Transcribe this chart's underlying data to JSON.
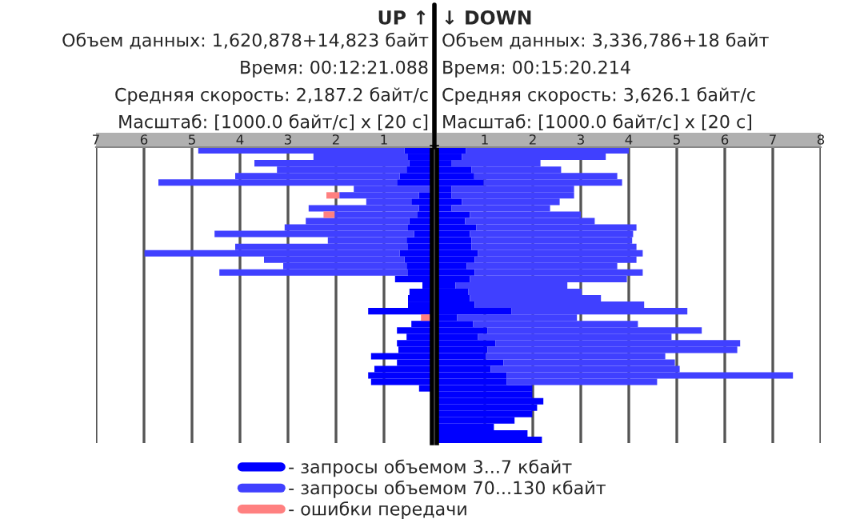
{
  "chart_data": [
    {
      "type": "bar",
      "orientation": "horizontal",
      "stacked": true,
      "title": "UP ↑",
      "annotations": [
        "Объем данных: 1,620,878+14,823 байт",
        "Время: 00:12:21.088",
        "Средняя скорость: 2,187.2 байт/с",
        "Масштаб: [1000.0 байт/с] x [20 с]"
      ],
      "categories": [
        null,
        null,
        null,
        null,
        null,
        null,
        null,
        null,
        null,
        null,
        null,
        null,
        null,
        null,
        null,
        null,
        null,
        null,
        null,
        null,
        null,
        null,
        null,
        null,
        null,
        null,
        null,
        null,
        null,
        null,
        null,
        null,
        null,
        null,
        null,
        null,
        null,
        null,
        null,
        null,
        null,
        null,
        null,
        null,
        null,
        null
      ],
      "series": [
        {
          "name": "- запросы объемом 3...7 кбайт",
          "color": "#0000ff",
          "values": [
            0.57,
            0.5,
            0.47,
            0.53,
            0.67,
            0.73,
            0,
            0.27,
            0.43,
            0.27,
            0.3,
            0.47,
            0.5,
            0.37,
            0.53,
            0.5,
            0.67,
            0.57,
            0.53,
            0.5,
            0.77,
            0.2,
            0.47,
            0.5,
            0.5,
            1.33,
            0,
            0.43,
            0.73,
            0.53,
            0.73,
            0.7,
            1.27,
            0.73,
            1.2,
            1.33,
            1.27,
            0.27,
            null,
            null,
            null,
            null,
            null,
            null,
            null,
            null
          ]
        },
        {
          "name": "- запросы объемом 70...130 кбайт",
          "color": "#4040ff",
          "values": [
            4.3,
            1.97,
            3.23,
            2.7,
            3.43,
            4.97,
            1.63,
            1.66,
            0.94,
            2.3,
            1.73,
            2.16,
            2.57,
            4.16,
            1.64,
            3.6,
            5.32,
            2.93,
            2.57,
            3.93,
            0,
            0,
            0,
            0,
            0,
            0,
            0,
            0,
            0,
            0,
            0,
            0,
            0,
            0,
            0,
            0,
            0,
            0,
            null,
            null,
            null,
            null,
            null,
            null,
            null,
            null
          ]
        },
        {
          "name": "- ошибки передачи",
          "color": "#ff8080",
          "values": [
            0,
            0,
            0,
            0,
            0,
            0,
            0,
            0.27,
            0,
            0,
            0.23,
            0,
            0,
            0,
            0,
            0,
            0,
            0,
            0,
            0,
            0,
            0,
            0,
            0,
            0,
            0,
            0.23,
            0,
            0,
            0,
            0,
            0,
            0,
            0,
            0,
            0,
            0,
            0,
            null,
            null,
            null,
            null,
            null,
            null,
            null,
            null
          ]
        }
      ],
      "xlim": [
        7,
        0
      ],
      "xticks": [
        1,
        2,
        3,
        4,
        5,
        6,
        7
      ],
      "grid": "x",
      "legend": "bottom"
    },
    {
      "type": "bar",
      "orientation": "horizontal",
      "stacked": true,
      "title": "↓ DOWN",
      "annotations": [
        "Объем данных: 3,336,786+18 байт",
        "Время: 00:15:20.214",
        "Средняя скорость: 3,626.1 байт/с",
        "Масштаб: [1000.0 байт/с] x [20 с]"
      ],
      "categories": [
        null,
        null,
        null,
        null,
        null,
        null,
        null,
        null,
        null,
        null,
        null,
        null,
        null,
        null,
        null,
        null,
        null,
        null,
        null,
        null,
        null,
        null,
        null,
        null,
        null,
        null,
        null,
        null,
        null,
        null,
        null,
        null,
        null,
        null,
        null,
        null,
        null,
        null,
        null,
        null,
        null,
        null,
        null,
        null,
        null,
        null
      ],
      "series": [
        {
          "color": "#0000ff",
          "values": [
            0.61,
            0.52,
            0.3,
            0.72,
            0.78,
            0.98,
            0.31,
            0.31,
            0.52,
            0.31,
            0.69,
            0.59,
            0.82,
            0.69,
            0.72,
            0.72,
            0.86,
            0.79,
            0.62,
            0.79,
            0.69,
            0.39,
            0.66,
            0.69,
            0.79,
            1.56,
            0.42,
            0.76,
            1.06,
            0.86,
            1.22,
            1.06,
            1.02,
            1.39,
            1.12,
            1.46,
            1.46,
            1.99,
            1.99,
            2.22,
            2.09,
            1.99,
            1.62,
            1.19,
            1.89,
            2.19
          ]
        },
        {
          "color": "#4040ff",
          "values": [
            3.39,
            3.0,
            1.86,
            1.87,
            2.98,
            2.88,
            2.55,
            2.55,
            2.04,
            2.05,
            2.31,
            2.7,
            3.34,
            3.4,
            3.35,
            3.44,
            3.43,
            3.37,
            3.14,
            3.5,
            3.27,
            2.33,
            2.36,
            2.73,
            3.53,
            3.66,
            2.5,
            3.43,
            4.46,
            4.03,
            5.1,
            5.2,
            3.74,
            3.57,
            3.94,
            5.96,
            3.13,
            0,
            0,
            0,
            0,
            0,
            0,
            0,
            0,
            0
          ]
        }
      ],
      "xlim": [
        0,
        8
      ],
      "xticks": [
        1,
        2,
        3,
        4,
        5,
        6,
        7,
        8
      ],
      "grid": "x"
    }
  ]
}
